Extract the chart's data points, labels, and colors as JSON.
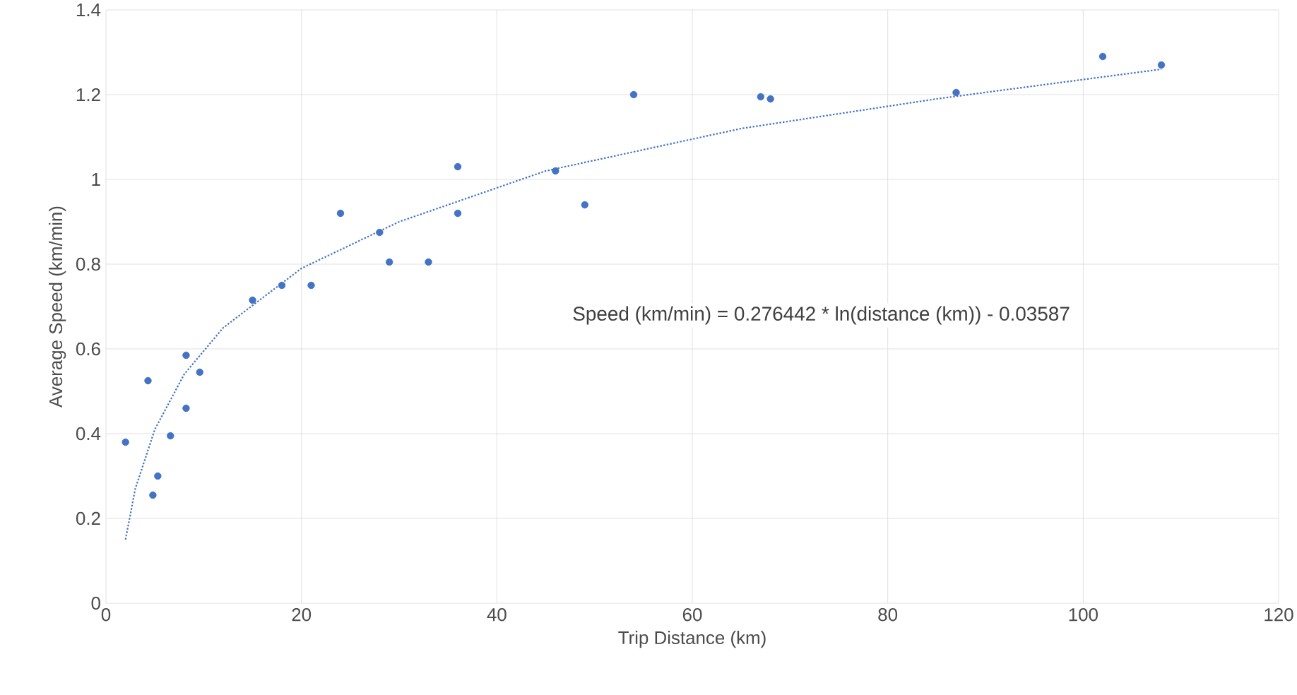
{
  "chart_data": {
    "type": "scatter",
    "xlabel": "Trip Distance (km)",
    "ylabel": "Average Speed (km/min)",
    "xlim": [
      0,
      120
    ],
    "ylim": [
      0,
      1.4
    ],
    "xticks": [
      0,
      20,
      40,
      60,
      80,
      100,
      120
    ],
    "yticks": [
      0,
      0.2,
      0.4,
      0.6,
      0.8,
      1,
      1.2,
      1.4
    ],
    "grid": true,
    "series": [
      {
        "color": "#4472c4",
        "marker": "circle",
        "x": [
          2,
          4.3,
          4.8,
          5.3,
          6.6,
          8.2,
          8.2,
          9.6,
          15,
          18,
          21,
          24,
          28,
          29,
          33,
          36,
          36,
          46,
          49,
          54,
          67,
          68,
          87,
          102,
          108
        ],
        "values": [
          0.38,
          0.525,
          0.255,
          0.3,
          0.395,
          0.46,
          0.585,
          0.545,
          0.715,
          0.75,
          0.75,
          0.92,
          0.875,
          0.805,
          0.805,
          1.03,
          0.92,
          1.02,
          0.94,
          1.2,
          1.195,
          1.19,
          1.205,
          1.29,
          1.27
        ]
      },
      {
        "type": "line",
        "color": "#4472c4",
        "marker": "none",
        "line_style": "dotted",
        "x": [
          2,
          3,
          5,
          8,
          12,
          20,
          30,
          45,
          65,
          85,
          108
        ],
        "values": [
          0.15,
          0.27,
          0.41,
          0.54,
          0.65,
          0.79,
          0.9,
          1.02,
          1.12,
          1.19,
          1.26
        ]
      }
    ],
    "annotations": [
      "Speed (km/min) = 0.276442 * ln(distance (km)) - 0.03587"
    ]
  }
}
